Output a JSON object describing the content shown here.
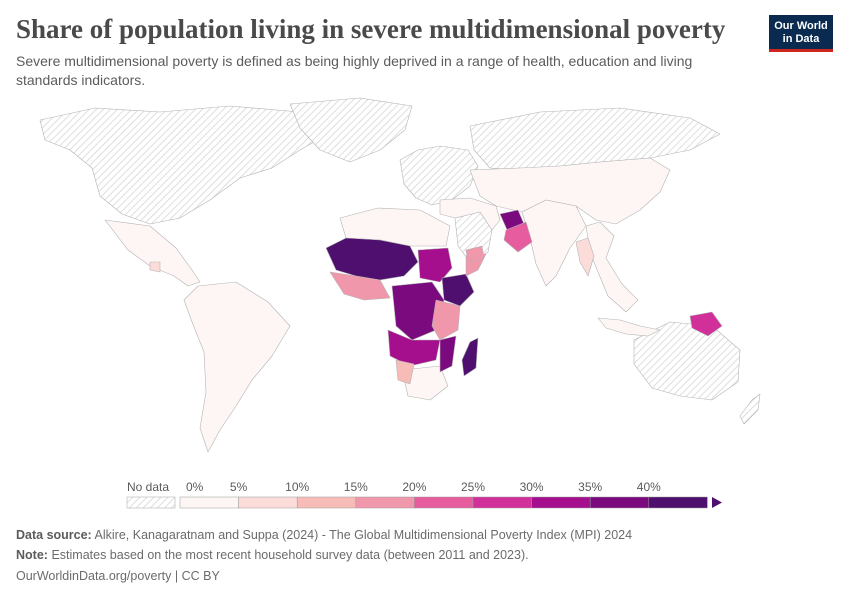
{
  "header": {
    "title": "Share of population living in severe multidimensional poverty",
    "subtitle": "Severe multidimensional poverty is defined as being highly deprived in a range of health, education and living standards indicators.",
    "logo_line1": "Our World",
    "logo_line2": "in Data"
  },
  "legend": {
    "no_data_label": "No data",
    "bins": [
      {
        "label": "0%",
        "color": "#fef6f5"
      },
      {
        "label": "5%",
        "color": "#fbdcd9"
      },
      {
        "label": "10%",
        "color": "#f8bcb8"
      },
      {
        "label": "15%",
        "color": "#f197ac"
      },
      {
        "label": "20%",
        "color": "#e65c9e"
      },
      {
        "label": "25%",
        "color": "#d1309a"
      },
      {
        "label": "30%",
        "color": "#a50f8d"
      },
      {
        "label": "35%",
        "color": "#7a0a7e"
      },
      {
        "label": "40%",
        "color": "#4f0f6e"
      }
    ],
    "max_label": "40%"
  },
  "colors": {
    "no_data": "#e6e6e6",
    "border": "#b3b3b3"
  },
  "footer": {
    "source_label": "Data source:",
    "source_text": "Alkire, Kanagaratnam and Suppa (2024) - The Global Multidimensional Poverty Index (MPI) 2024",
    "note_label": "Note:",
    "note_text": "Estimates based on the most recent household survey data (between 2011 and 2023).",
    "link_text": "OurWorldinData.org/poverty",
    "license": "| CC BY"
  }
}
